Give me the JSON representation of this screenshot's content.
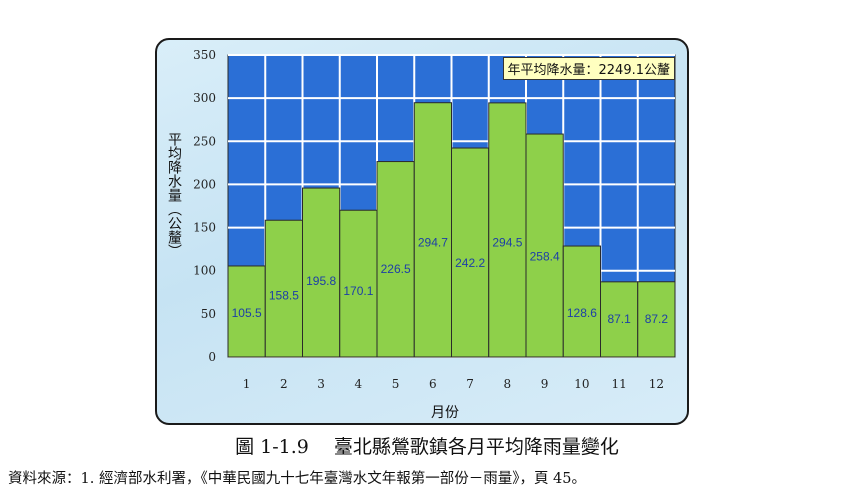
{
  "caption": "圖 1-1.9　 臺北縣鶯歌鎮各月平均降雨量變化",
  "source": "資料來源：1. 經濟部水利署，《中華民國九十七年臺灣水文年報第一部份－雨量》，頁 45。",
  "chart_data": {
    "type": "bar",
    "title": "",
    "annual_label": "年平均降水量：2249.1公釐",
    "xlabel": "月份",
    "ylabel": "平均降水量（公釐）",
    "categories": [
      "1",
      "2",
      "3",
      "4",
      "5",
      "6",
      "7",
      "8",
      "9",
      "10",
      "11",
      "12"
    ],
    "values": [
      105.5,
      158.5,
      195.8,
      170.1,
      226.5,
      294.7,
      242.2,
      294.5,
      258.4,
      128.6,
      87.1,
      87.2
    ],
    "ylim": [
      0,
      350
    ],
    "yticks": [
      0,
      50,
      100,
      150,
      200,
      250,
      300,
      350
    ],
    "grid": true,
    "bar_color": "#8ed04a",
    "plot_bg": "#2b6fd6"
  }
}
